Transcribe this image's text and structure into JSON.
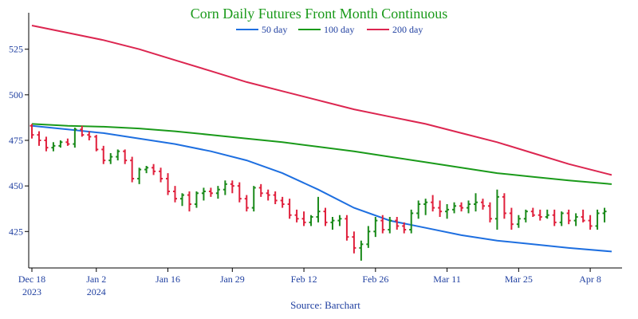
{
  "chart_data": {
    "type": "line",
    "title": "Corn Daily Futures Front Month Continuous",
    "title_color": "#1a9a1a",
    "source": "Source: Barchart",
    "ylim": [
      405,
      545
    ],
    "y_ticks": [
      425,
      450,
      475,
      500,
      525
    ],
    "x_range": [
      0,
      82
    ],
    "x_ticks": [
      {
        "i": 0,
        "label": "Dec 18",
        "sublabel": "2023"
      },
      {
        "i": 9,
        "label": "Jan 2",
        "sublabel": "2024"
      },
      {
        "i": 19,
        "label": "Jan 16",
        "sublabel": ""
      },
      {
        "i": 28,
        "label": "Jan 29",
        "sublabel": ""
      },
      {
        "i": 38,
        "label": "Feb 12",
        "sublabel": ""
      },
      {
        "i": 48,
        "label": "Feb 26",
        "sublabel": ""
      },
      {
        "i": 58,
        "label": "Mar 11",
        "sublabel": ""
      },
      {
        "i": 68,
        "label": "Mar 25",
        "sublabel": ""
      },
      {
        "i": 78,
        "label": "Apr 8",
        "sublabel": ""
      }
    ],
    "grid": false,
    "legend_position": "top-center",
    "up_color": "#1a8a1a",
    "down_color": "#e0203c",
    "series": [
      {
        "name": "50 day",
        "color": "#1e6fe0",
        "x": [
          0,
          5,
          10,
          15,
          20,
          25,
          30,
          35,
          40,
          45,
          50,
          55,
          60,
          65,
          70,
          75,
          81
        ],
        "values": [
          483,
          481,
          479,
          476,
          473,
          469,
          464,
          457,
          448,
          438,
          431,
          427,
          423,
          420,
          418,
          416,
          414
        ]
      },
      {
        "name": "100 day",
        "color": "#1a9a1a",
        "x": [
          0,
          5,
          10,
          15,
          20,
          25,
          30,
          35,
          40,
          45,
          50,
          55,
          60,
          65,
          70,
          75,
          81
        ],
        "values": [
          484,
          483,
          482.5,
          481.5,
          480,
          478,
          476,
          474,
          471.5,
          469,
          466,
          463,
          460,
          457,
          455,
          453,
          451
        ]
      },
      {
        "name": "200 day",
        "color": "#dc2650",
        "x": [
          0,
          5,
          10,
          15,
          20,
          25,
          30,
          35,
          40,
          45,
          50,
          55,
          60,
          65,
          70,
          75,
          81
        ],
        "values": [
          538,
          534,
          530,
          525,
          519,
          513,
          507,
          502,
          497,
          492,
          488,
          484,
          479,
          474,
          468,
          462,
          456
        ]
      }
    ],
    "ohlc": [
      [
        483,
        484,
        476,
        478
      ],
      [
        478,
        480,
        472,
        475
      ],
      [
        475,
        477,
        469,
        471
      ],
      [
        471,
        474,
        469,
        472
      ],
      [
        472,
        475,
        471,
        474
      ],
      [
        474,
        476,
        472,
        473
      ],
      [
        473,
        482,
        471,
        481
      ],
      [
        481,
        483,
        477,
        478
      ],
      [
        478,
        480,
        475,
        477
      ],
      [
        477,
        478,
        469,
        470
      ],
      [
        470,
        472,
        462,
        464
      ],
      [
        464,
        468,
        462,
        466
      ],
      [
        466,
        470,
        464,
        469
      ],
      [
        469,
        470,
        462,
        464
      ],
      [
        464,
        466,
        452,
        454
      ],
      [
        454,
        460,
        451,
        459
      ],
      [
        459,
        461,
        457,
        460
      ],
      [
        460,
        462,
        456,
        458
      ],
      [
        458,
        460,
        452,
        454
      ],
      [
        454,
        457,
        445,
        447
      ],
      [
        447,
        450,
        441,
        443
      ],
      [
        443,
        446,
        439,
        445
      ],
      [
        445,
        447,
        436,
        440
      ],
      [
        440,
        447,
        438,
        446
      ],
      [
        446,
        449,
        442,
        447
      ],
      [
        447,
        449,
        444,
        446
      ],
      [
        446,
        450,
        443,
        448
      ],
      [
        448,
        453,
        445,
        451
      ],
      [
        451,
        453,
        446,
        450
      ],
      [
        450,
        452,
        441,
        443
      ],
      [
        443,
        445,
        436,
        438
      ],
      [
        438,
        450,
        436,
        449
      ],
      [
        449,
        451,
        444,
        446
      ],
      [
        446,
        448,
        442,
        445
      ],
      [
        445,
        447,
        440,
        442
      ],
      [
        442,
        444,
        438,
        440
      ],
      [
        440,
        443,
        432,
        434
      ],
      [
        434,
        437,
        430,
        432
      ],
      [
        432,
        436,
        428,
        430
      ],
      [
        430,
        434,
        428,
        433
      ],
      [
        433,
        444,
        430,
        436
      ],
      [
        436,
        438,
        428,
        430
      ],
      [
        430,
        433,
        426,
        431
      ],
      [
        431,
        434,
        428,
        432
      ],
      [
        432,
        434,
        420,
        422
      ],
      [
        422,
        425,
        413,
        416
      ],
      [
        416,
        420,
        409,
        418
      ],
      [
        418,
        428,
        416,
        425
      ],
      [
        425,
        433,
        422,
        431
      ],
      [
        431,
        434,
        424,
        426
      ],
      [
        426,
        433,
        424,
        431
      ],
      [
        431,
        433,
        426,
        428
      ],
      [
        428,
        430,
        424,
        426
      ],
      [
        426,
        437,
        424,
        435
      ],
      [
        435,
        442,
        432,
        440
      ],
      [
        440,
        443,
        434,
        441
      ],
      [
        441,
        445,
        436,
        438
      ],
      [
        438,
        442,
        433,
        436
      ],
      [
        436,
        440,
        432,
        437
      ],
      [
        437,
        441,
        435,
        439
      ],
      [
        439,
        441,
        436,
        438
      ],
      [
        438,
        442,
        435,
        440
      ],
      [
        440,
        446,
        436,
        441
      ],
      [
        441,
        443,
        437,
        439
      ],
      [
        439,
        441,
        430,
        432
      ],
      [
        432,
        448,
        426,
        444
      ],
      [
        444,
        446,
        432,
        435
      ],
      [
        435,
        438,
        426,
        429
      ],
      [
        429,
        434,
        427,
        432
      ],
      [
        432,
        437,
        430,
        436
      ],
      [
        436,
        438,
        433,
        434
      ],
      [
        434,
        437,
        431,
        433
      ],
      [
        433,
        437,
        432,
        434
      ],
      [
        434,
        437,
        428,
        430
      ],
      [
        430,
        436,
        428,
        435
      ],
      [
        435,
        437,
        429,
        431
      ],
      [
        431,
        435,
        428,
        433
      ],
      [
        433,
        437,
        430,
        431
      ],
      [
        431,
        434,
        426,
        428
      ],
      [
        428,
        437,
        426,
        435
      ],
      [
        435,
        438,
        430,
        436
      ]
    ]
  }
}
